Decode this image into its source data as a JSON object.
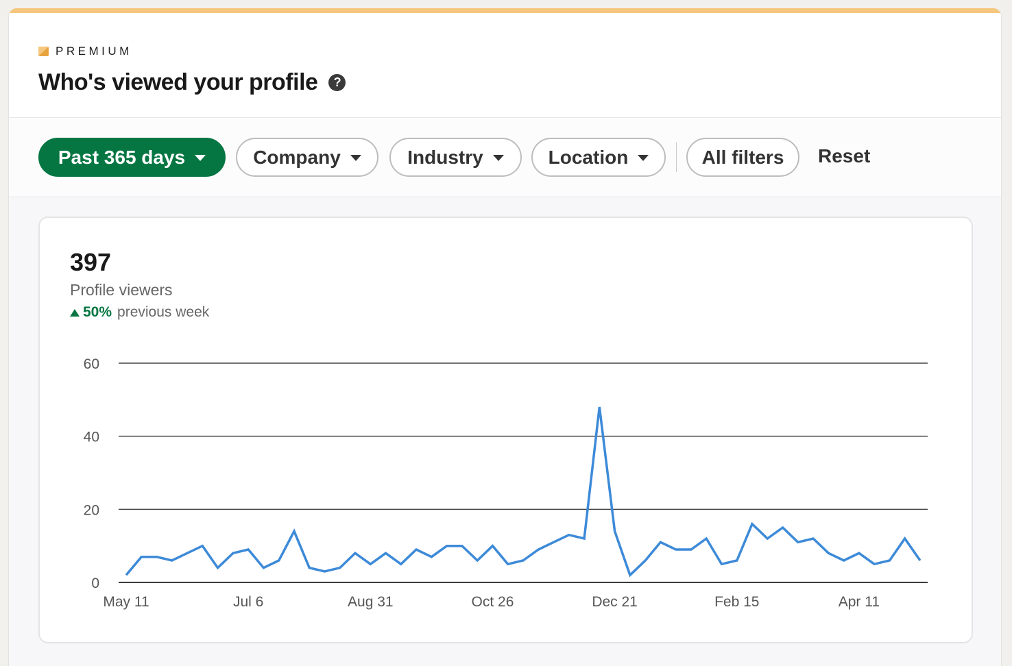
{
  "header": {
    "badge": "PREMIUM",
    "title": "Who's viewed your profile",
    "help_icon": "question-circle-icon"
  },
  "filters": {
    "items": [
      {
        "label": "Past 365 days",
        "active": true,
        "dropdown": true
      },
      {
        "label": "Company",
        "active": false,
        "dropdown": true
      },
      {
        "label": "Industry",
        "active": false,
        "dropdown": true
      },
      {
        "label": "Location",
        "active": false,
        "dropdown": true
      },
      {
        "label": "All filters",
        "active": false,
        "dropdown": false
      }
    ],
    "reset_label": "Reset"
  },
  "summary": {
    "value": "397",
    "label": "Profile viewers",
    "change_pct": "50%",
    "change_label": "previous week",
    "change_direction": "up"
  },
  "colors": {
    "premium_accent": "#f5c77e",
    "active_filter": "#057642",
    "positive": "#057642",
    "line": "#3d8ad8"
  },
  "chart_data": {
    "type": "line",
    "title": "",
    "xlabel": "",
    "ylabel": "Profile viewers",
    "ylim": [
      0,
      60
    ],
    "yticks": [
      0,
      20,
      40,
      60
    ],
    "grid": true,
    "legend": null,
    "x_tick_labels": [
      "May 11",
      "Jul 6",
      "Aug 31",
      "Oct 26",
      "Dec 21",
      "Feb 15",
      "Apr 11"
    ],
    "x_tick_indices": [
      0,
      8,
      16,
      24,
      32,
      40,
      48
    ],
    "series": [
      {
        "name": "Profile viewers (weekly)",
        "values": [
          2,
          7,
          7,
          6,
          8,
          10,
          4,
          8,
          9,
          4,
          6,
          14,
          4,
          3,
          4,
          8,
          5,
          8,
          5,
          9,
          7,
          10,
          10,
          6,
          10,
          5,
          6,
          9,
          11,
          13,
          12,
          48,
          14,
          2,
          6,
          11,
          9,
          9,
          12,
          5,
          6,
          16,
          12,
          15,
          11,
          12,
          8,
          6,
          8,
          5,
          6,
          12,
          6
        ]
      }
    ]
  }
}
